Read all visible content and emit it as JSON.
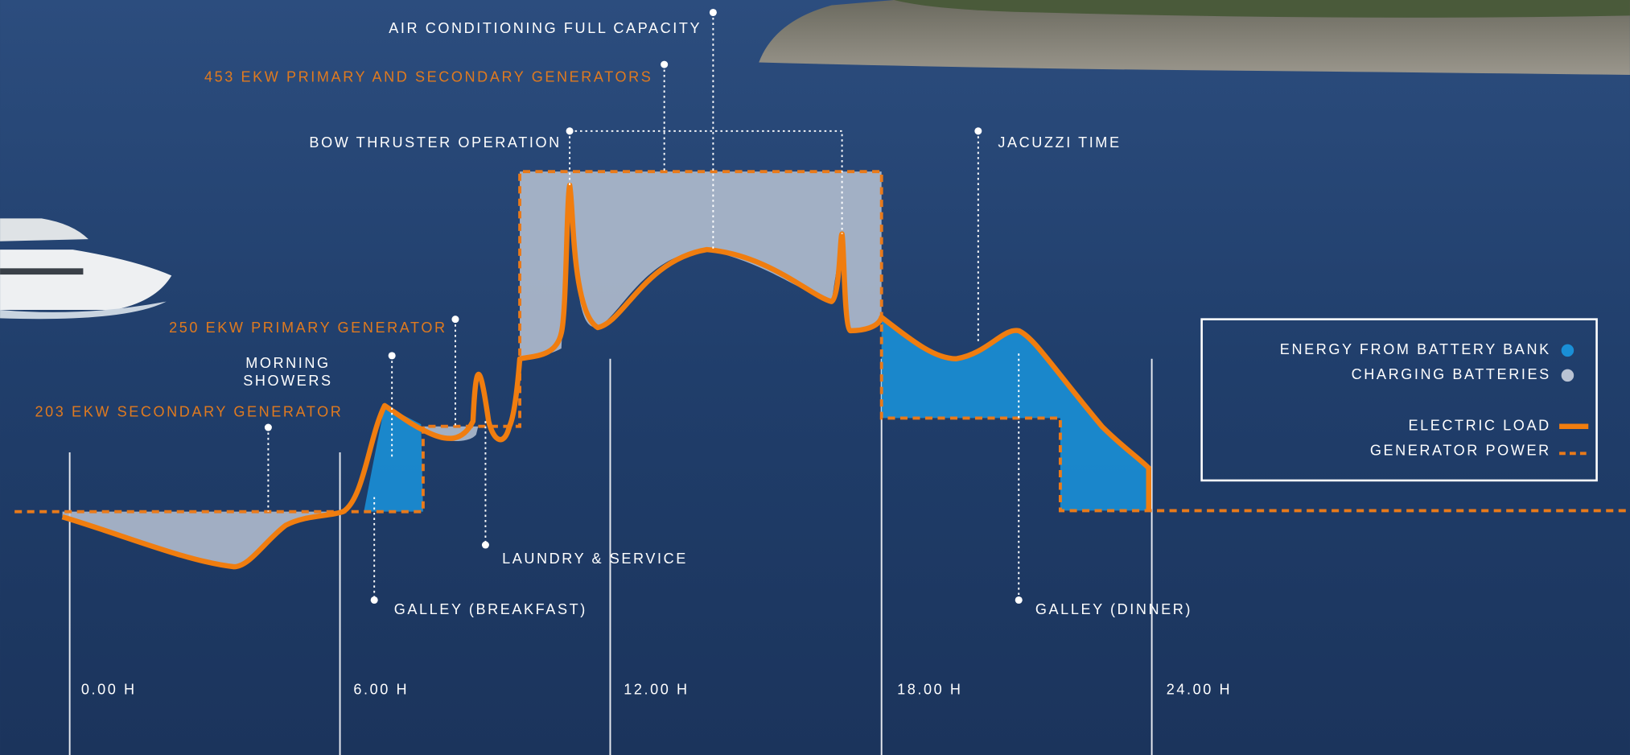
{
  "annotations": {
    "air_conditioning": "AIR CONDITIONING FULL CAPACITY",
    "generators_453": "453 EKW PRIMARY AND SECONDARY GENERATORS",
    "bow_thruster": "BOW THRUSTER OPERATION",
    "jacuzzi": "JACUZZI TIME",
    "generator_250": "250 EKW PRIMARY GENERATOR",
    "morning_showers": [
      "MORNING",
      "SHOWERS"
    ],
    "generator_203": "203 EKW SECONDARY GENERATOR",
    "laundry": "LAUNDRY & SERVICE",
    "galley_breakfast": "GALLEY (BREAKFAST)",
    "galley_dinner": "GALLEY (DINNER)"
  },
  "time_labels": [
    "0.00 H",
    "6.00 H",
    "12.00 H",
    "18.00 H",
    "24.00 H"
  ],
  "legend": [
    "ENERGY FROM BATTERY BANK",
    "CHARGING BATTERIES",
    "ELECTRIC LOAD",
    "GENERATOR POWER"
  ]
}
